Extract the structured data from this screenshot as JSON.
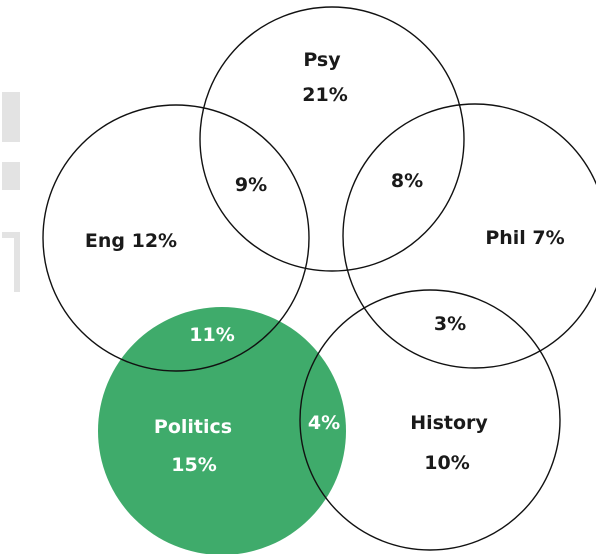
{
  "colors": {
    "politics_fill": "#3fab6b",
    "outline": "#111111",
    "artifact_gray": "#e3e3e3"
  },
  "sets": [
    {
      "id": "psy",
      "name": "Psy",
      "value": "21%"
    },
    {
      "id": "eng",
      "name": "Eng",
      "value": "12%"
    },
    {
      "id": "phil",
      "name": "Phil",
      "value": "7%"
    },
    {
      "id": "history",
      "name": "History",
      "value": "10%"
    },
    {
      "id": "politics",
      "name": "Politics",
      "value": "15%",
      "filled": true
    }
  ],
  "overlaps": [
    {
      "sets": [
        "psy",
        "eng"
      ],
      "value": "9%"
    },
    {
      "sets": [
        "psy",
        "phil"
      ],
      "value": "8%"
    },
    {
      "sets": [
        "phil",
        "history"
      ],
      "value": "3%"
    },
    {
      "sets": [
        "eng",
        "politics"
      ],
      "value": "11%"
    },
    {
      "sets": [
        "politics",
        "history"
      ],
      "value": "4%"
    }
  ],
  "labels": {
    "psy_name": "Psy",
    "psy_value": "21%",
    "eng": "Eng 12%",
    "phil": "Phil 7%",
    "history_name": "History",
    "history_value": "10%",
    "politics_name": "Politics",
    "politics_value": "15%",
    "psy_eng": "9%",
    "psy_phil": "8%",
    "phil_history": "3%",
    "eng_politics": "11%",
    "politics_history": "4%"
  }
}
